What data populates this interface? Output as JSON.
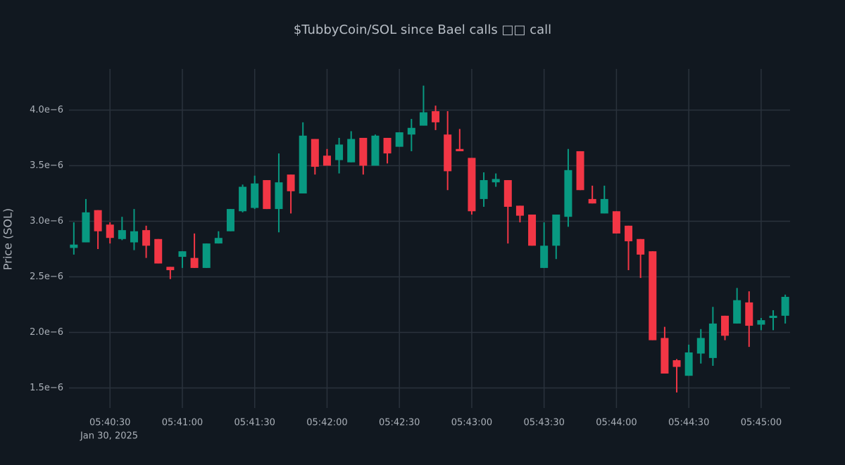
{
  "chart_data": {
    "type": "candlestick",
    "title": "$TubbyCoin/SOL since Bael calls □□ call",
    "y_label": "Price (SOL)",
    "x_date_label": "Jan 30, 2025",
    "increasing_color": "#089981",
    "decreasing_color": "#f23645",
    "grid": true,
    "xlim": [
      "2025-01-30T05:40:13",
      "2025-01-30T05:45:12"
    ],
    "xticks": [
      {
        "value": "2025-01-30T05:40:30",
        "label": "05:40:30"
      },
      {
        "value": "2025-01-30T05:41:00",
        "label": "05:41:00"
      },
      {
        "value": "2025-01-30T05:41:30",
        "label": "05:41:30"
      },
      {
        "value": "2025-01-30T05:42:00",
        "label": "05:42:00"
      },
      {
        "value": "2025-01-30T05:42:30",
        "label": "05:42:30"
      },
      {
        "value": "2025-01-30T05:43:00",
        "label": "05:43:00"
      },
      {
        "value": "2025-01-30T05:43:30",
        "label": "05:43:30"
      },
      {
        "value": "2025-01-30T05:44:00",
        "label": "05:44:00"
      },
      {
        "value": "2025-01-30T05:44:30",
        "label": "05:44:30"
      },
      {
        "value": "2025-01-30T05:45:00",
        "label": "05:45:00"
      }
    ],
    "ylim": [
      1.32e-06,
      4.37e-06
    ],
    "yticks": [
      {
        "value": 1.5e-06,
        "label": "1.5e−6"
      },
      {
        "value": 2e-06,
        "label": "2.0e−6"
      },
      {
        "value": 2.5e-06,
        "label": "2.5e−6"
      },
      {
        "value": 3e-06,
        "label": "3.0e−6"
      },
      {
        "value": 3.5e-06,
        "label": "3.5e−6"
      },
      {
        "value": 4e-06,
        "label": "4.0e−6"
      }
    ],
    "x": [
      "2025-01-30T05:40:15",
      "2025-01-30T05:40:20",
      "2025-01-30T05:40:25",
      "2025-01-30T05:40:30",
      "2025-01-30T05:40:35",
      "2025-01-30T05:40:40",
      "2025-01-30T05:40:45",
      "2025-01-30T05:40:50",
      "2025-01-30T05:40:55",
      "2025-01-30T05:41:00",
      "2025-01-30T05:41:05",
      "2025-01-30T05:41:10",
      "2025-01-30T05:41:15",
      "2025-01-30T05:41:20",
      "2025-01-30T05:41:25",
      "2025-01-30T05:41:30",
      "2025-01-30T05:41:35",
      "2025-01-30T05:41:40",
      "2025-01-30T05:41:45",
      "2025-01-30T05:41:50",
      "2025-01-30T05:41:55",
      "2025-01-30T05:42:00",
      "2025-01-30T05:42:05",
      "2025-01-30T05:42:10",
      "2025-01-30T05:42:15",
      "2025-01-30T05:42:20",
      "2025-01-30T05:42:25",
      "2025-01-30T05:42:30",
      "2025-01-30T05:42:35",
      "2025-01-30T05:42:40",
      "2025-01-30T05:42:45",
      "2025-01-30T05:42:50",
      "2025-01-30T05:42:55",
      "2025-01-30T05:43:00",
      "2025-01-30T05:43:05",
      "2025-01-30T05:43:10",
      "2025-01-30T05:43:15",
      "2025-01-30T05:43:20",
      "2025-01-30T05:43:25",
      "2025-01-30T05:43:30",
      "2025-01-30T05:43:35",
      "2025-01-30T05:43:40",
      "2025-01-30T05:43:45",
      "2025-01-30T05:43:50",
      "2025-01-30T05:43:55",
      "2025-01-30T05:44:00",
      "2025-01-30T05:44:05",
      "2025-01-30T05:44:10",
      "2025-01-30T05:44:15",
      "2025-01-30T05:44:20",
      "2025-01-30T05:44:25",
      "2025-01-30T05:44:30",
      "2025-01-30T05:44:35",
      "2025-01-30T05:44:40",
      "2025-01-30T05:44:45",
      "2025-01-30T05:44:50",
      "2025-01-30T05:44:55",
      "2025-01-30T05:45:00",
      "2025-01-30T05:45:05",
      "2025-01-30T05:45:10"
    ],
    "open": [
      2.76e-06,
      2.81e-06,
      3.1e-06,
      2.97e-06,
      2.84e-06,
      2.81e-06,
      2.92e-06,
      2.84e-06,
      2.59e-06,
      2.68e-06,
      2.67e-06,
      2.58e-06,
      2.8e-06,
      2.91e-06,
      3.09e-06,
      3.12e-06,
      3.37e-06,
      3.11e-06,
      3.42e-06,
      3.25e-06,
      3.74e-06,
      3.59e-06,
      3.55e-06,
      3.53e-06,
      3.75e-06,
      3.5e-06,
      3.75e-06,
      3.67e-06,
      3.78e-06,
      3.86e-06,
      3.99e-06,
      3.78e-06,
      3.65e-06,
      3.57e-06,
      3.2e-06,
      3.35e-06,
      3.37e-06,
      3.14e-06,
      3.06e-06,
      2.58e-06,
      2.78e-06,
      3.04e-06,
      3.63e-06,
      3.2e-06,
      3.07e-06,
      3.09e-06,
      2.96e-06,
      2.84e-06,
      2.73e-06,
      1.95e-06,
      1.75e-06,
      1.61e-06,
      1.81e-06,
      1.77e-06,
      2.15e-06,
      2.08e-06,
      2.27e-06,
      2.07e-06,
      2.13e-06,
      2.15e-06
    ],
    "high": [
      2.99e-06,
      3.2e-06,
      3.1e-06,
      2.99e-06,
      3.04e-06,
      3.11e-06,
      2.96e-06,
      2.84e-06,
      2.59e-06,
      2.73e-06,
      2.89e-06,
      2.8e-06,
      2.91e-06,
      3.11e-06,
      3.33e-06,
      3.41e-06,
      3.37e-06,
      3.61e-06,
      3.42e-06,
      3.89e-06,
      3.74e-06,
      3.65e-06,
      3.75e-06,
      3.81e-06,
      3.75e-06,
      3.78e-06,
      3.75e-06,
      3.8e-06,
      3.92e-06,
      4.22e-06,
      4.04e-06,
      3.99e-06,
      3.83e-06,
      3.57e-06,
      3.44e-06,
      3.43e-06,
      3.37e-06,
      3.14e-06,
      3.06e-06,
      2.99e-06,
      3.06e-06,
      3.65e-06,
      3.63e-06,
      3.32e-06,
      3.32e-06,
      3.09e-06,
      2.96e-06,
      2.84e-06,
      2.73e-06,
      2.05e-06,
      1.76e-06,
      1.89e-06,
      2.03e-06,
      2.23e-06,
      2.15e-06,
      2.4e-06,
      2.37e-06,
      2.13e-06,
      2.2e-06,
      2.34e-06
    ],
    "low": [
      2.7e-06,
      2.81e-06,
      2.75e-06,
      2.8e-06,
      2.83e-06,
      2.74e-06,
      2.67e-06,
      2.62e-06,
      2.48e-06,
      2.58e-06,
      2.58e-06,
      2.58e-06,
      2.8e-06,
      2.91e-06,
      3.08e-06,
      3.11e-06,
      3.11e-06,
      2.9e-06,
      3.07e-06,
      3.25e-06,
      3.42e-06,
      3.5e-06,
      3.43e-06,
      3.53e-06,
      3.42e-06,
      3.5e-06,
      3.52e-06,
      3.67e-06,
      3.63e-06,
      3.86e-06,
      3.82e-06,
      3.28e-06,
      3.63e-06,
      3.06e-06,
      3.13e-06,
      3.31e-06,
      2.8e-06,
      2.99e-06,
      2.78e-06,
      2.58e-06,
      2.66e-06,
      2.95e-06,
      3.28e-06,
      3.16e-06,
      3.07e-06,
      2.89e-06,
      2.56e-06,
      2.49e-06,
      1.93e-06,
      1.63e-06,
      1.46e-06,
      1.61e-06,
      1.72e-06,
      1.7e-06,
      1.93e-06,
      2.08e-06,
      1.87e-06,
      2.02e-06,
      2.02e-06,
      2.08e-06
    ],
    "close": [
      2.79e-06,
      3.08e-06,
      2.91e-06,
      2.85e-06,
      2.92e-06,
      2.91e-06,
      2.78e-06,
      2.62e-06,
      2.56e-06,
      2.73e-06,
      2.58e-06,
      2.8e-06,
      2.85e-06,
      3.11e-06,
      3.31e-06,
      3.34e-06,
      3.11e-06,
      3.35e-06,
      3.27e-06,
      3.77e-06,
      3.49e-06,
      3.5e-06,
      3.69e-06,
      3.74e-06,
      3.5e-06,
      3.77e-06,
      3.61e-06,
      3.8e-06,
      3.84e-06,
      3.98e-06,
      3.89e-06,
      3.45e-06,
      3.63e-06,
      3.09e-06,
      3.37e-06,
      3.38e-06,
      3.13e-06,
      3.05e-06,
      2.78e-06,
      2.78e-06,
      3.06e-06,
      3.46e-06,
      3.28e-06,
      3.16e-06,
      3.2e-06,
      2.89e-06,
      2.82e-06,
      2.7e-06,
      1.93e-06,
      1.63e-06,
      1.69e-06,
      1.82e-06,
      1.95e-06,
      2.08e-06,
      1.97e-06,
      2.29e-06,
      2.06e-06,
      2.11e-06,
      2.15e-06,
      2.32e-06
    ]
  }
}
